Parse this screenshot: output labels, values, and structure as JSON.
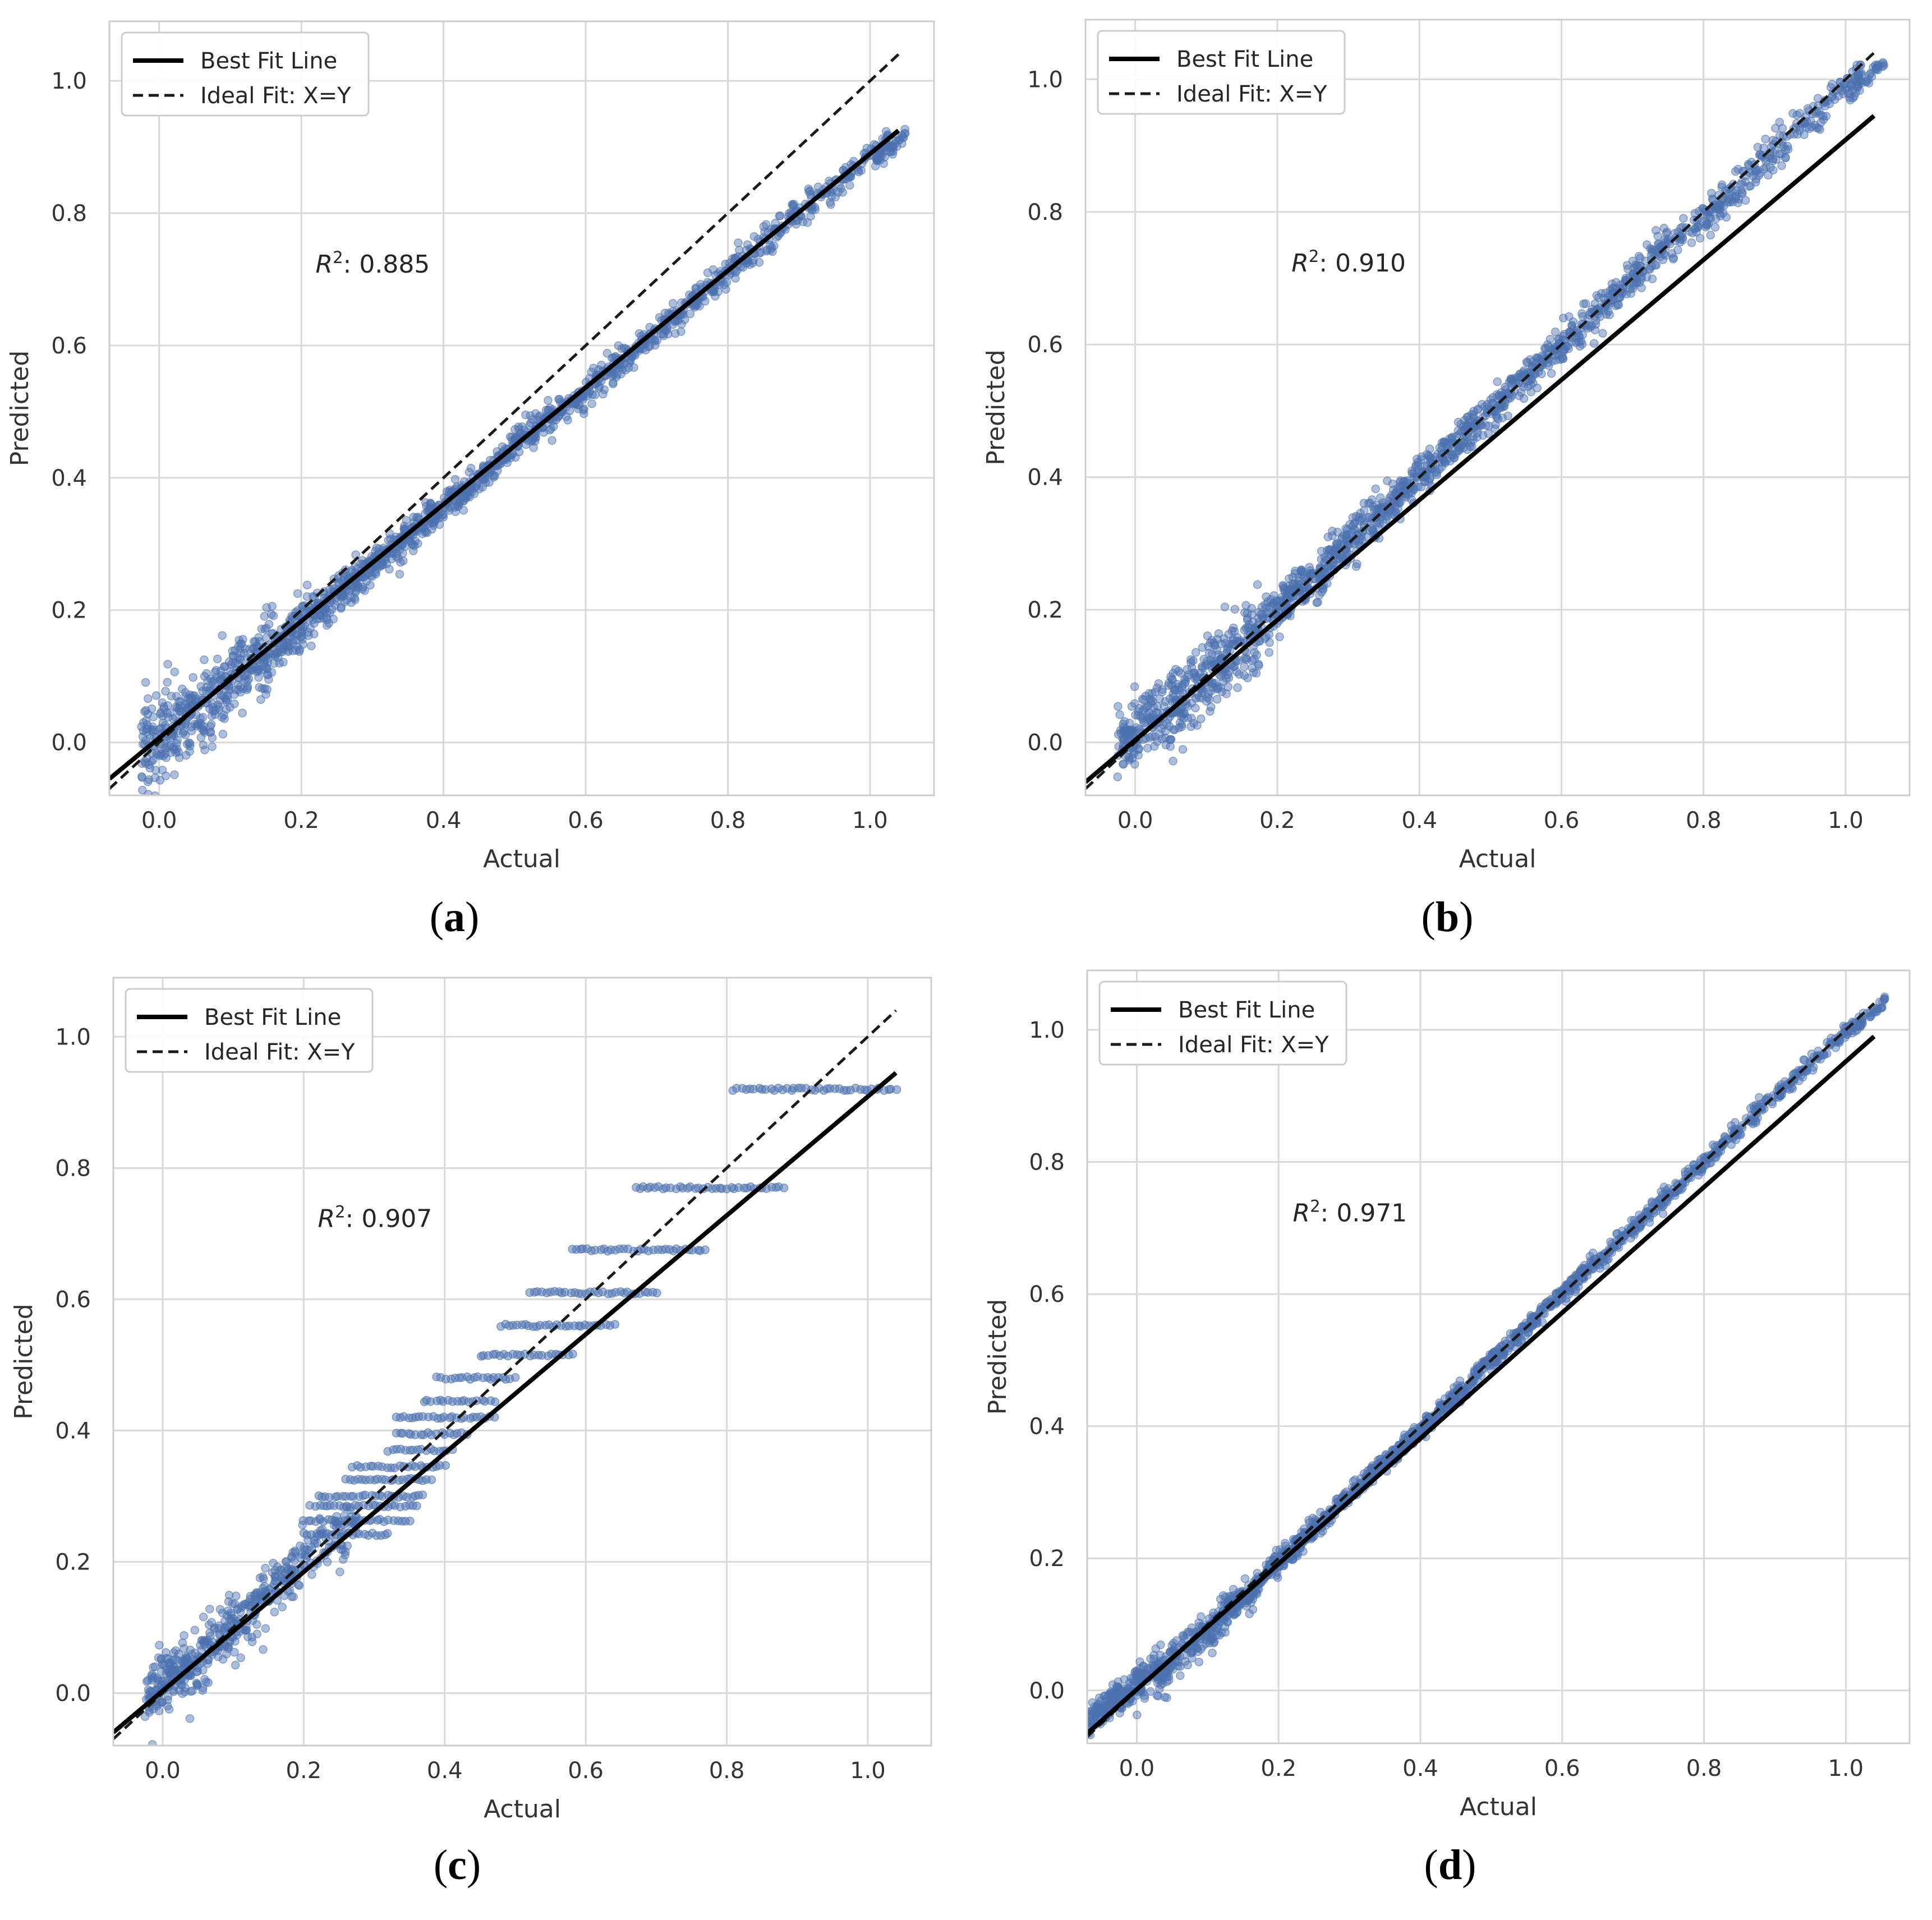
{
  "figure": {
    "panels": [
      {
        "id": "a",
        "caption_label": "a",
        "caption_open": "(",
        "caption_close": ")",
        "r2_label": "R",
        "r2_sup": "2",
        "r2_value": ": 0.885",
        "legend": {
          "best_fit": "Best Fit Line",
          "ideal_fit": "Ideal Fit: X=Y"
        },
        "xlabel": "Actual",
        "ylabel": "Predicted"
      },
      {
        "id": "b",
        "caption_label": "b",
        "caption_open": "(",
        "caption_close": ")",
        "r2_label": "R",
        "r2_sup": "2",
        "r2_value": ": 0.910",
        "legend": {
          "best_fit": "Best Fit Line",
          "ideal_fit": "Ideal Fit: X=Y"
        },
        "xlabel": "Actual",
        "ylabel": "Predicted"
      },
      {
        "id": "c",
        "caption_label": "c",
        "caption_open": "(",
        "caption_close": ")",
        "r2_label": "R",
        "r2_sup": "2",
        "r2_value": ": 0.907",
        "legend": {
          "best_fit": "Best Fit Line",
          "ideal_fit": "Ideal Fit: X=Y"
        },
        "xlabel": "Actual",
        "ylabel": "Predicted"
      },
      {
        "id": "d",
        "caption_label": "d",
        "caption_open": "(",
        "caption_close": ")",
        "r2_label": "R",
        "r2_sup": "2",
        "r2_value": ": 0.971",
        "legend": {
          "best_fit": "Best Fit Line",
          "ideal_fit": "Ideal Fit: X=Y"
        },
        "xlabel": "Actual",
        "ylabel": "Predicted"
      }
    ]
  },
  "chart_data": [
    {
      "type": "scatter",
      "panel": "a",
      "title": "",
      "xlabel": "Actual",
      "ylabel": "Predicted",
      "xlim": [
        -0.07,
        1.09
      ],
      "ylim": [
        -0.08,
        1.09
      ],
      "xticks": [
        0.0,
        0.2,
        0.4,
        0.6,
        0.8,
        1.0
      ],
      "yticks": [
        0.0,
        0.2,
        0.4,
        0.6,
        0.8,
        1.0
      ],
      "xtick_labels": [
        "0.0",
        "0.2",
        "0.4",
        "0.6",
        "0.8",
        "1.0"
      ],
      "ytick_labels": [
        "0.0",
        "0.2",
        "0.4",
        "0.6",
        "0.8",
        "1.0"
      ],
      "grid": true,
      "legend_position": "upper-left",
      "scatter_color": "#4c72b0",
      "r2": 0.885,
      "best_fit_line": {
        "x": [
          -0.07,
          1.04
        ],
        "y": [
          -0.055,
          0.925
        ]
      },
      "ideal_fit_line": {
        "x": [
          -0.07,
          1.04
        ],
        "y": [
          -0.07,
          1.04
        ]
      },
      "cloud": [
        [
          0.0,
          0.01,
          0.07
        ],
        [
          0.05,
          0.045,
          0.06
        ],
        [
          0.1,
          0.09,
          0.055
        ],
        [
          0.15,
          0.135,
          0.045
        ],
        [
          0.2,
          0.18,
          0.035
        ],
        [
          0.25,
          0.22,
          0.03
        ],
        [
          0.3,
          0.27,
          0.025
        ],
        [
          0.35,
          0.31,
          0.025
        ],
        [
          0.4,
          0.355,
          0.02
        ],
        [
          0.45,
          0.4,
          0.02
        ],
        [
          0.5,
          0.45,
          0.02
        ],
        [
          0.55,
          0.49,
          0.02
        ],
        [
          0.6,
          0.53,
          0.02
        ],
        [
          0.65,
          0.575,
          0.02
        ],
        [
          0.7,
          0.62,
          0.02
        ],
        [
          0.75,
          0.665,
          0.02
        ],
        [
          0.8,
          0.71,
          0.02
        ],
        [
          0.85,
          0.755,
          0.02
        ],
        [
          0.9,
          0.8,
          0.02
        ],
        [
          0.95,
          0.845,
          0.02
        ],
        [
          1.0,
          0.89,
          0.015
        ],
        [
          1.03,
          0.9,
          0.01
        ]
      ]
    },
    {
      "type": "scatter",
      "panel": "b",
      "title": "",
      "xlabel": "Actual",
      "ylabel": "Predicted",
      "xlim": [
        -0.07,
        1.09
      ],
      "ylim": [
        -0.08,
        1.09
      ],
      "xticks": [
        0.0,
        0.2,
        0.4,
        0.6,
        0.8,
        1.0
      ],
      "yticks": [
        0.0,
        0.2,
        0.4,
        0.6,
        0.8,
        1.0
      ],
      "xtick_labels": [
        "0.0",
        "0.2",
        "0.4",
        "0.6",
        "0.8",
        "1.0"
      ],
      "ytick_labels": [
        "0.0",
        "0.2",
        "0.4",
        "0.6",
        "0.8",
        "1.0"
      ],
      "grid": true,
      "legend_position": "upper-left",
      "scatter_color": "#4c72b0",
      "r2": 0.91,
      "best_fit_line": {
        "x": [
          -0.07,
          1.04
        ],
        "y": [
          -0.06,
          0.945
        ]
      },
      "ideal_fit_line": {
        "x": [
          -0.07,
          1.04
        ],
        "y": [
          -0.07,
          1.04
        ]
      },
      "cloud": [
        [
          0.0,
          0.02,
          0.045
        ],
        [
          0.05,
          0.05,
          0.05
        ],
        [
          0.1,
          0.1,
          0.05
        ],
        [
          0.15,
          0.15,
          0.045
        ],
        [
          0.2,
          0.2,
          0.035
        ],
        [
          0.25,
          0.25,
          0.03
        ],
        [
          0.3,
          0.3,
          0.03
        ],
        [
          0.35,
          0.35,
          0.03
        ],
        [
          0.4,
          0.4,
          0.025
        ],
        [
          0.45,
          0.45,
          0.025
        ],
        [
          0.5,
          0.5,
          0.025
        ],
        [
          0.55,
          0.55,
          0.025
        ],
        [
          0.6,
          0.6,
          0.025
        ],
        [
          0.65,
          0.65,
          0.025
        ],
        [
          0.7,
          0.7,
          0.025
        ],
        [
          0.75,
          0.75,
          0.025
        ],
        [
          0.8,
          0.79,
          0.025
        ],
        [
          0.85,
          0.84,
          0.025
        ],
        [
          0.9,
          0.89,
          0.025
        ],
        [
          0.95,
          0.94,
          0.02
        ],
        [
          1.0,
          0.99,
          0.015
        ],
        [
          1.03,
          1.0,
          0.01
        ]
      ]
    },
    {
      "type": "scatter",
      "panel": "c",
      "title": "",
      "xlabel": "Actual",
      "ylabel": "Predicted",
      "xlim": [
        -0.07,
        1.09
      ],
      "ylim": [
        -0.08,
        1.09
      ],
      "xticks": [
        0.0,
        0.2,
        0.4,
        0.6,
        0.8,
        1.0
      ],
      "yticks": [
        0.0,
        0.2,
        0.4,
        0.6,
        0.8,
        1.0
      ],
      "xtick_labels": [
        "0.0",
        "0.2",
        "0.4",
        "0.6",
        "0.8",
        "1.0"
      ],
      "ytick_labels": [
        "0.0",
        "0.2",
        "0.4",
        "0.6",
        "0.8",
        "1.0"
      ],
      "grid": true,
      "legend_position": "upper-left",
      "scatter_color": "#4c72b0",
      "r2": 0.907,
      "best_fit_line": {
        "x": [
          -0.07,
          1.04
        ],
        "y": [
          -0.06,
          0.945
        ]
      },
      "ideal_fit_line": {
        "x": [
          -0.07,
          1.04
        ],
        "y": [
          -0.07,
          1.04
        ]
      },
      "cloud": [
        [
          0.0,
          0.02,
          0.04
        ],
        [
          0.05,
          0.05,
          0.045
        ],
        [
          0.1,
          0.1,
          0.045
        ],
        [
          0.15,
          0.15,
          0.045
        ],
        [
          0.2,
          0.2,
          0.04
        ],
        [
          0.25,
          0.24,
          0.035
        ]
      ],
      "bands": [
        [
          0.242,
          0.2,
          0.32
        ],
        [
          0.263,
          0.2,
          0.35
        ],
        [
          0.285,
          0.21,
          0.36
        ],
        [
          0.3,
          0.22,
          0.37
        ],
        [
          0.325,
          0.26,
          0.38
        ],
        [
          0.345,
          0.27,
          0.4
        ],
        [
          0.37,
          0.32,
          0.41
        ],
        [
          0.395,
          0.33,
          0.43
        ],
        [
          0.42,
          0.33,
          0.47
        ],
        [
          0.445,
          0.37,
          0.47
        ],
        [
          0.48,
          0.39,
          0.5
        ],
        [
          0.515,
          0.45,
          0.58
        ],
        [
          0.56,
          0.48,
          0.64
        ],
        [
          0.61,
          0.52,
          0.7
        ],
        [
          0.675,
          0.58,
          0.77
        ],
        [
          0.77,
          0.67,
          0.88
        ],
        [
          0.92,
          0.81,
          1.04
        ]
      ]
    },
    {
      "type": "scatter",
      "panel": "d",
      "title": "",
      "xlabel": "Actual",
      "ylabel": "Predicted",
      "xlim": [
        -0.07,
        1.09
      ],
      "ylim": [
        -0.08,
        1.09
      ],
      "xticks": [
        0.0,
        0.2,
        0.4,
        0.6,
        0.8,
        1.0
      ],
      "yticks": [
        0.0,
        0.2,
        0.4,
        0.6,
        0.8,
        1.0
      ],
      "xtick_labels": [
        "0.0",
        "0.2",
        "0.4",
        "0.6",
        "0.8",
        "1.0"
      ],
      "ytick_labels": [
        "0.0",
        "0.2",
        "0.4",
        "0.6",
        "0.8",
        "1.0"
      ],
      "grid": true,
      "legend_position": "upper-left",
      "scatter_color": "#4c72b0",
      "r2": 0.971,
      "best_fit_line": {
        "x": [
          -0.07,
          1.04
        ],
        "y": [
          -0.065,
          0.99
        ]
      },
      "ideal_fit_line": {
        "x": [
          -0.07,
          1.04
        ],
        "y": [
          -0.07,
          1.04
        ]
      },
      "cloud": [
        [
          -0.05,
          -0.03,
          0.02
        ],
        [
          0.0,
          0.01,
          0.025
        ],
        [
          0.05,
          0.045,
          0.03
        ],
        [
          0.1,
          0.09,
          0.025
        ],
        [
          0.15,
          0.14,
          0.02
        ],
        [
          0.2,
          0.195,
          0.015
        ],
        [
          0.25,
          0.245,
          0.015
        ],
        [
          0.3,
          0.295,
          0.012
        ],
        [
          0.35,
          0.345,
          0.012
        ],
        [
          0.4,
          0.395,
          0.012
        ],
        [
          0.45,
          0.445,
          0.012
        ],
        [
          0.5,
          0.5,
          0.012
        ],
        [
          0.55,
          0.55,
          0.012
        ],
        [
          0.6,
          0.6,
          0.012
        ],
        [
          0.65,
          0.65,
          0.012
        ],
        [
          0.7,
          0.7,
          0.012
        ],
        [
          0.75,
          0.75,
          0.012
        ],
        [
          0.8,
          0.8,
          0.012
        ],
        [
          0.85,
          0.85,
          0.012
        ],
        [
          0.9,
          0.9,
          0.012
        ],
        [
          0.95,
          0.95,
          0.012
        ],
        [
          1.0,
          0.995,
          0.01
        ],
        [
          1.03,
          1.02,
          0.008
        ]
      ]
    }
  ]
}
